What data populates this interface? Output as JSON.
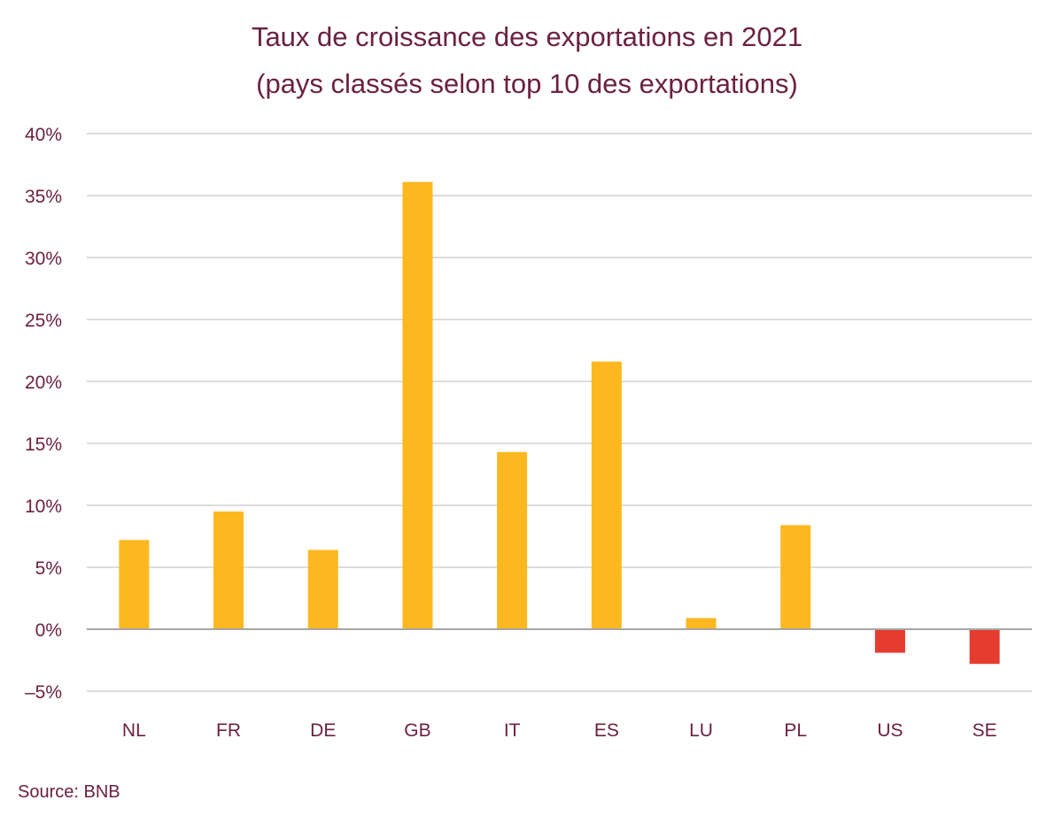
{
  "chart_data": {
    "type": "bar",
    "title": "Taux de croissance des exportations en 2021",
    "subtitle": "(pays classés selon top 10 des exportations)",
    "xlabel": "",
    "ylabel": "",
    "categories": [
      "NL",
      "FR",
      "DE",
      "GB",
      "IT",
      "ES",
      "LU",
      "PL",
      "US",
      "SE"
    ],
    "values": [
      7.2,
      9.5,
      6.4,
      36.1,
      14.3,
      21.6,
      0.9,
      8.4,
      -1.9,
      -2.8
    ],
    "unit": "%",
    "ylim": [
      -5,
      40
    ],
    "yticks": [
      -5,
      0,
      5,
      10,
      15,
      20,
      25,
      30,
      35,
      40
    ],
    "ytick_labels": [
      "-5%",
      "0%",
      "5%",
      "10%",
      "15%",
      "20%",
      "25%",
      "30%",
      "35%",
      "40%"
    ],
    "grid": true,
    "legend": "none",
    "colors": {
      "positive": "#FDB71F",
      "negative": "#E63C2F",
      "grid": "#c8c8c8",
      "axis": "#a6a6a6",
      "text": "#6b2140"
    },
    "source": "Source: BNB"
  }
}
